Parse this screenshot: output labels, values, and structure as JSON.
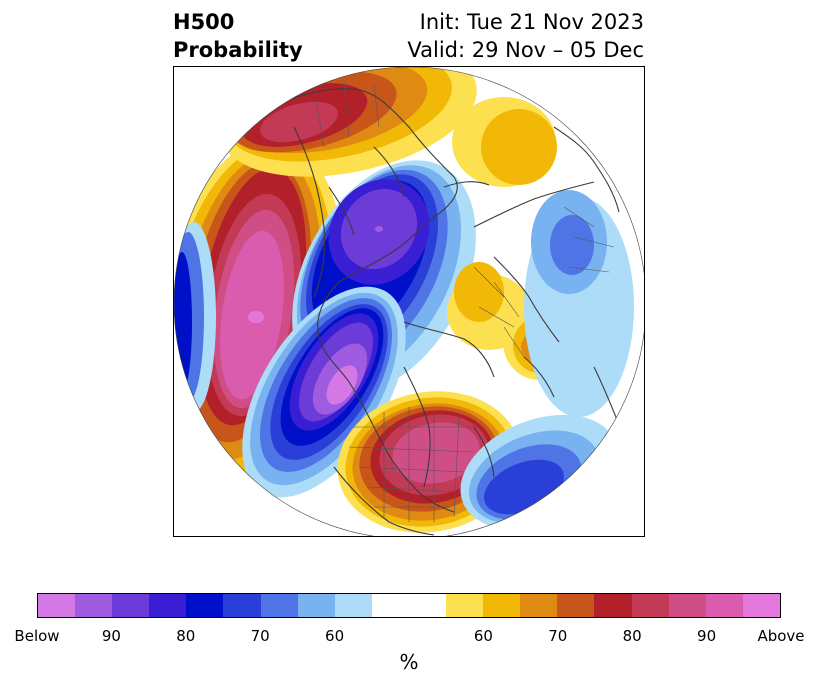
{
  "title": {
    "line1_left": "H500",
    "line2_left": "Probability",
    "line1_right": "Init: Tue 21 Nov 2023",
    "line2_right": "Valid: 29 Nov – 05 Dec"
  },
  "colorbar": {
    "colors": [
      "#d478e6",
      "#a05ce0",
      "#6c3bd8",
      "#3a1ed4",
      "#0010c8",
      "#2a3ed8",
      "#4e74e6",
      "#78b2f0",
      "#addcf8",
      "#ffffff",
      "#ffffff",
      "#fde050",
      "#f2b808",
      "#df8a12",
      "#c8561a",
      "#b2202a",
      "#c23a56",
      "#cf4e86",
      "#d95cae",
      "#e278dc"
    ],
    "tick_labels": [
      "Below",
      "90",
      "80",
      "70",
      "60",
      "60",
      "70",
      "80",
      "90",
      "Above"
    ],
    "unit": "%"
  },
  "map": {
    "projection": "north-polar-stereographic",
    "features": [
      "continent-outlines",
      "country-borders",
      "us-state-borders"
    ]
  }
}
